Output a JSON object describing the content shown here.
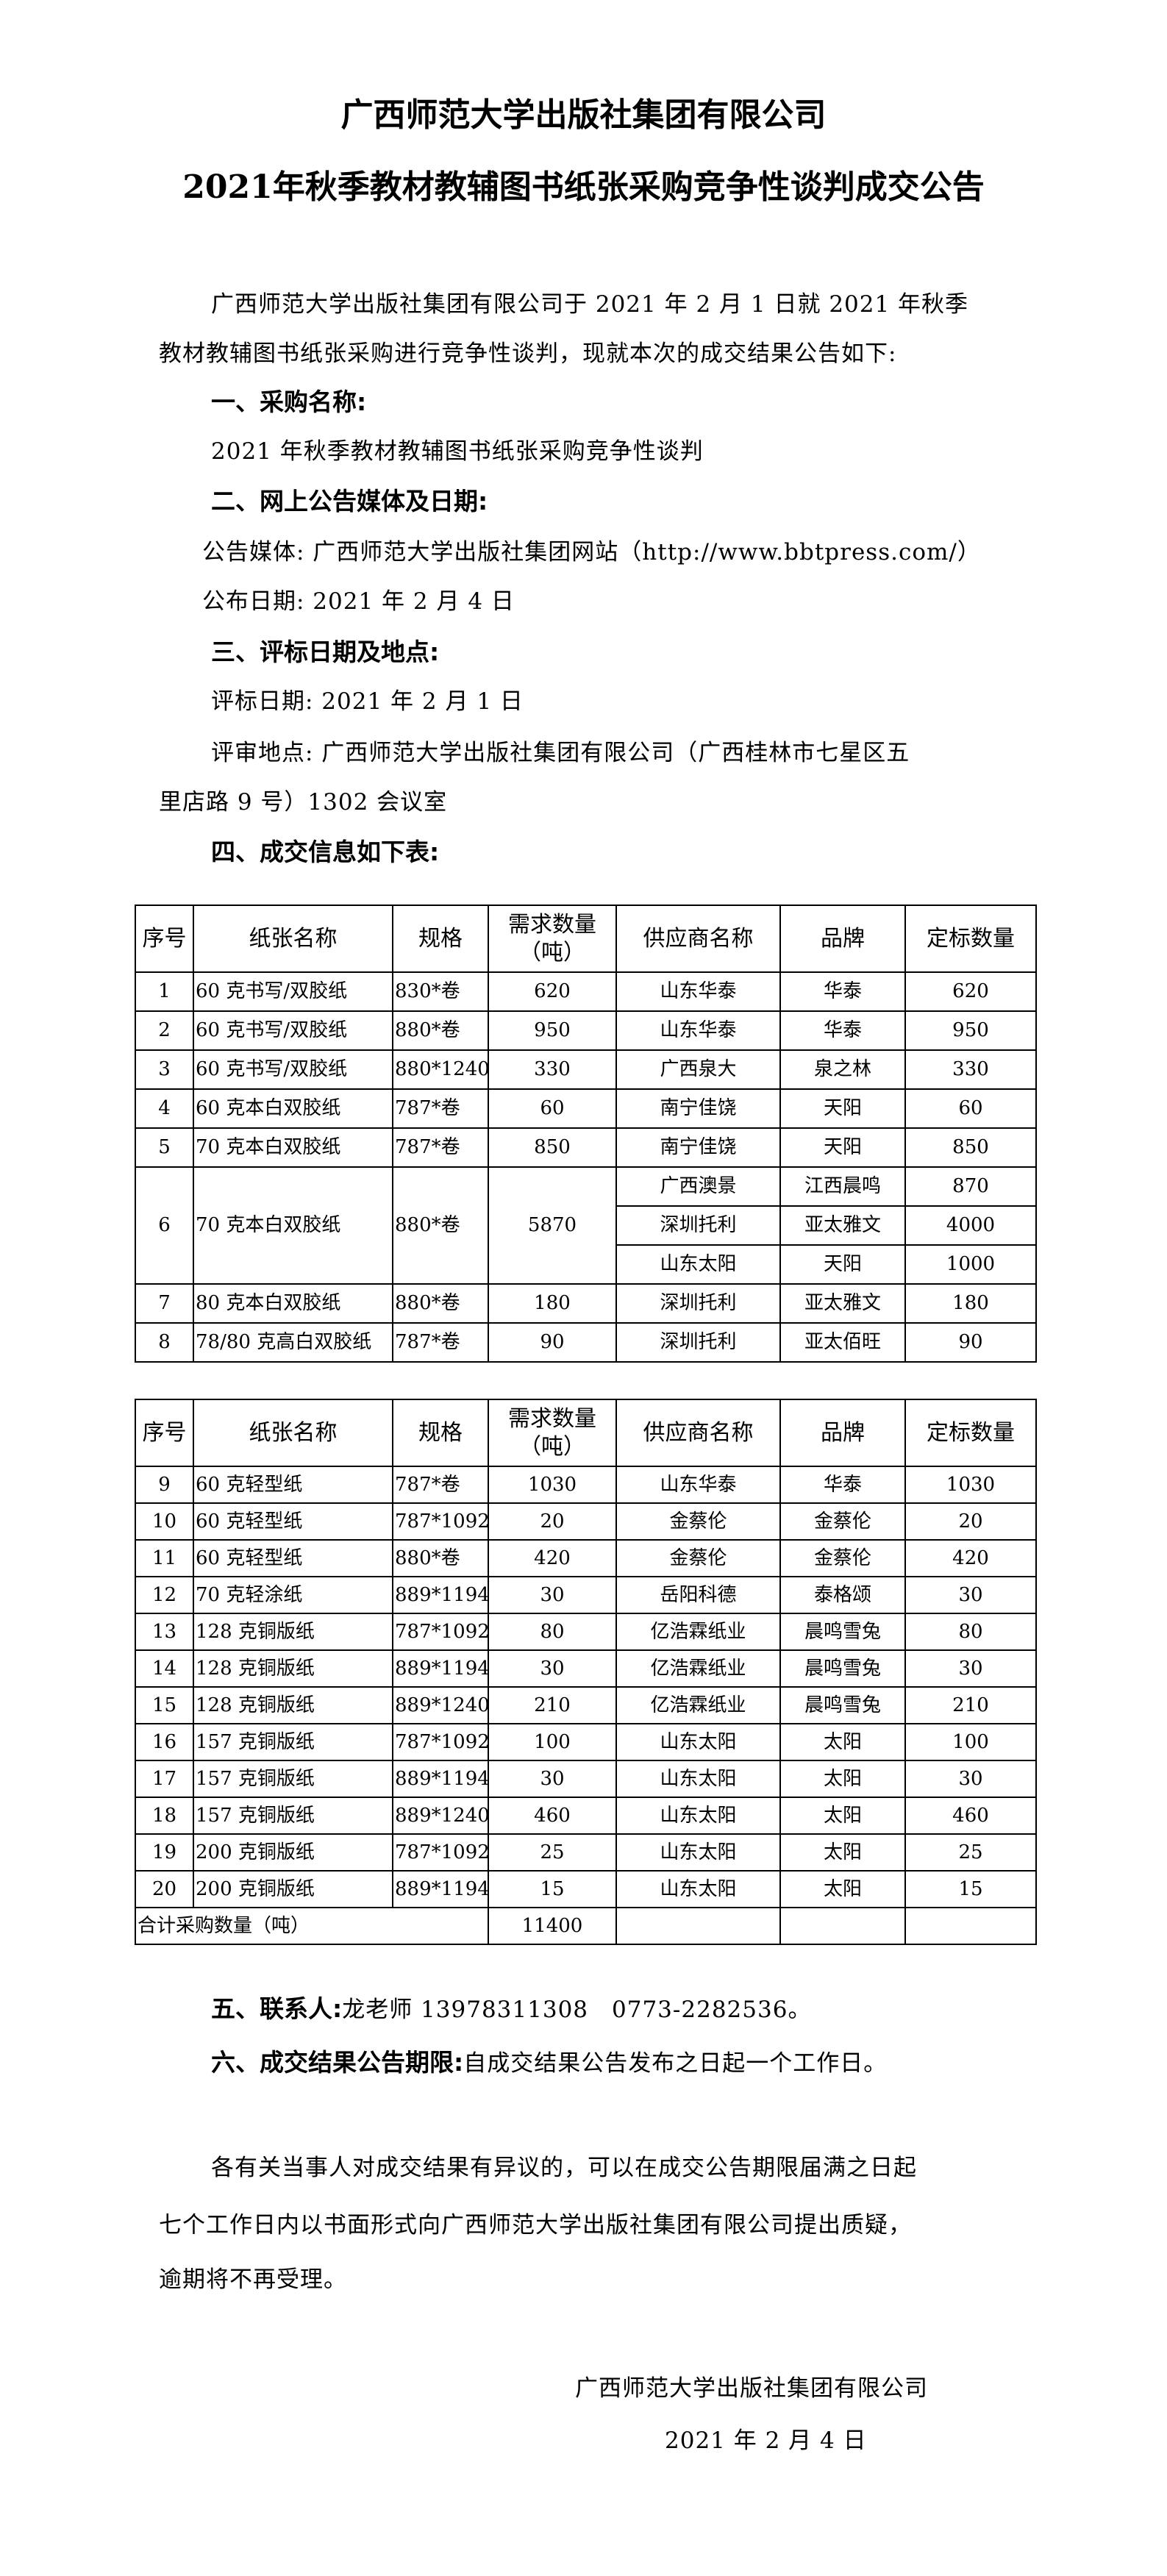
{
  "header": {
    "title": "广西师范大学出版社集团有限公司",
    "subtitle": "2021年秋季教材教辅图书纸张采购竞争性谈判成交公告"
  },
  "intro": {
    "line1": "广西师范大学出版社集团有限公司于 2021 年 2 月 1 日就 2021 年秋季",
    "line2": "教材教辅图书纸张采购进行竞争性谈判，现就本次的成交结果公告如下:"
  },
  "sections": {
    "s1_heading": "一、采购名称:",
    "s1_text": "2021 年秋季教材教辅图书纸张采购竞争性谈判",
    "s2_heading": "二、网上公告媒体及日期:",
    "s2_media": "公告媒体: 广西师范大学出版社集团网站（http://www.bbtpress.com/）",
    "s2_date": "公布日期: 2021 年 2 月 4 日",
    "s3_heading": "三、评标日期及地点:",
    "s3_date": "评标日期: 2021 年 2 月 1 日",
    "s3_place_1": "评审地点: 广西师范大学出版社集团有限公司（广西桂林市七星区五",
    "s3_place_2": "里店路 9 号）1302 会议室",
    "s4_heading": "四、成交信息如下表:",
    "s5_heading": "五、联系人:",
    "s5_text": "龙老师 13978311308　0773-2282536。",
    "s6_heading": "六、成交结果公告期限:",
    "s6_text": "自成交结果公告发布之日起一个工作日。"
  },
  "table": {
    "headers": [
      "序号",
      "纸张名称",
      "规格",
      "需求数量（吨）",
      "供应商名称",
      "品牌",
      "定标数量"
    ],
    "table1_rows": [
      {
        "no": "1",
        "name": "60 克书写/双胶纸",
        "spec": "830*卷",
        "qty": "620",
        "suppliers": [
          [
            "山东华泰",
            "华泰",
            "620"
          ]
        ]
      },
      {
        "no": "2",
        "name": "60 克书写/双胶纸",
        "spec": "880*卷",
        "qty": "950",
        "suppliers": [
          [
            "山东华泰",
            "华泰",
            "950"
          ]
        ]
      },
      {
        "no": "3",
        "name": "60 克书写/双胶纸",
        "spec": "880*1240",
        "qty": "330",
        "suppliers": [
          [
            "广西泉大",
            "泉之林",
            "330"
          ]
        ]
      },
      {
        "no": "4",
        "name": "60 克本白双胶纸",
        "spec": "787*卷",
        "qty": "60",
        "suppliers": [
          [
            "南宁佳饶",
            "天阳",
            "60"
          ]
        ]
      },
      {
        "no": "5",
        "name": "70 克本白双胶纸",
        "spec": "787*卷",
        "qty": "850",
        "suppliers": [
          [
            "南宁佳饶",
            "天阳",
            "850"
          ]
        ]
      },
      {
        "no": "6",
        "name": "70 克本白双胶纸",
        "spec": "880*卷",
        "qty": "5870",
        "suppliers": [
          [
            "广西澳景",
            "江西晨鸣",
            "870"
          ],
          [
            "深圳托利",
            "亚太雅文",
            "4000"
          ],
          [
            "山东太阳",
            "天阳",
            "1000"
          ]
        ]
      },
      {
        "no": "7",
        "name": "80 克本白双胶纸",
        "spec": "880*卷",
        "qty": "180",
        "suppliers": [
          [
            "深圳托利",
            "亚太雅文",
            "180"
          ]
        ]
      },
      {
        "no": "8",
        "name": "78/80 克高白双胶纸",
        "spec": "787*卷",
        "qty": "90",
        "suppliers": [
          [
            "深圳托利",
            "亚太佰旺",
            "90"
          ]
        ]
      }
    ],
    "table2_rows": [
      {
        "no": "9",
        "name": "60 克轻型纸",
        "spec": "787*卷",
        "qty": "1030",
        "suppliers": [
          [
            "山东华泰",
            "华泰",
            "1030"
          ]
        ]
      },
      {
        "no": "10",
        "name": "60 克轻型纸",
        "spec": "787*1092",
        "qty": "20",
        "suppliers": [
          [
            "金蔡伦",
            "金蔡伦",
            "20"
          ]
        ]
      },
      {
        "no": "11",
        "name": "60 克轻型纸",
        "spec": "880*卷",
        "qty": "420",
        "suppliers": [
          [
            "金蔡伦",
            "金蔡伦",
            "420"
          ]
        ]
      },
      {
        "no": "12",
        "name": "70 克轻涂纸",
        "spec": "889*1194",
        "qty": "30",
        "suppliers": [
          [
            "岳阳科德",
            "泰格颂",
            "30"
          ]
        ]
      },
      {
        "no": "13",
        "name": "128 克铜版纸",
        "spec": "787*1092",
        "qty": "80",
        "suppliers": [
          [
            "亿浩霖纸业",
            "晨鸣雪兔",
            "80"
          ]
        ]
      },
      {
        "no": "14",
        "name": "128 克铜版纸",
        "spec": "889*1194",
        "qty": "30",
        "suppliers": [
          [
            "亿浩霖纸业",
            "晨鸣雪兔",
            "30"
          ]
        ]
      },
      {
        "no": "15",
        "name": "128 克铜版纸",
        "spec": "889*1240",
        "qty": "210",
        "suppliers": [
          [
            "亿浩霖纸业",
            "晨鸣雪兔",
            "210"
          ]
        ]
      },
      {
        "no": "16",
        "name": "157 克铜版纸",
        "spec": "787*1092",
        "qty": "100",
        "suppliers": [
          [
            "山东太阳",
            "太阳",
            "100"
          ]
        ]
      },
      {
        "no": "17",
        "name": "157 克铜版纸",
        "spec": "889*1194",
        "qty": "30",
        "suppliers": [
          [
            "山东太阳",
            "太阳",
            "30"
          ]
        ]
      },
      {
        "no": "18",
        "name": "157 克铜版纸",
        "spec": "889*1240",
        "qty": "460",
        "suppliers": [
          [
            "山东太阳",
            "太阳",
            "460"
          ]
        ]
      },
      {
        "no": "19",
        "name": "200 克铜版纸",
        "spec": "787*1092",
        "qty": "25",
        "suppliers": [
          [
            "山东太阳",
            "太阳",
            "25"
          ]
        ]
      },
      {
        "no": "20",
        "name": "200 克铜版纸",
        "spec": "889*1194",
        "qty": "15",
        "suppliers": [
          [
            "山东太阳",
            "太阳",
            "15"
          ]
        ]
      }
    ],
    "total_label": "合计采购数量（吨）",
    "total_value": "11400"
  },
  "closing": {
    "line1": "各有关当事人对成交结果有异议的，可以在成交公告期限届满之日起",
    "line2": "七个工作日内以书面形式向广西师范大学出版社集团有限公司提出质疑，",
    "line3": "逾期将不再受理。"
  },
  "signature": {
    "org": "广西师范大学出版社集团有限公司",
    "date": "2021 年 2 月 4 日"
  }
}
